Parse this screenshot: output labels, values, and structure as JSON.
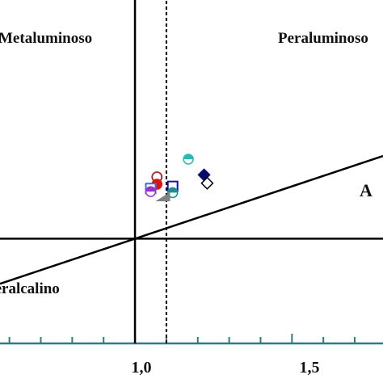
{
  "chart_data": {
    "type": "scatter",
    "xlabel": "A",
    "ylabel": "",
    "xlim": [
      0.57,
      1.79
    ],
    "ylim": [
      0.0,
      3.28
    ],
    "xticks": [
      {
        "value": 1.0,
        "label": "1,0"
      },
      {
        "value": 1.5,
        "label": "1,5"
      }
    ],
    "minor_x_step": 0.1,
    "region_labels": [
      {
        "text": "Metaluminoso"
      },
      {
        "text": "Peraluminoso"
      },
      {
        "text": "Peralcalino"
      }
    ],
    "reference_lines": [
      {
        "kind": "vertical",
        "x": 1.0,
        "style": "solid"
      },
      {
        "kind": "horizontal",
        "y": 1.0,
        "style": "solid"
      },
      {
        "kind": "vertical",
        "x": 1.1,
        "style": "dashed"
      },
      {
        "kind": "diagonal",
        "from": [
          0.57,
          0.57
        ],
        "to": [
          1.79,
          1.79
        ],
        "style": "solid"
      }
    ],
    "points": [
      {
        "x": 1.17,
        "y": 1.76,
        "marker": "circle-half",
        "color": "#2fb7b3"
      },
      {
        "x": 1.07,
        "y": 1.59,
        "marker": "circle-open",
        "color": "#b22222"
      },
      {
        "x": 1.07,
        "y": 1.52,
        "marker": "circle",
        "color": "#e01010"
      },
      {
        "x": 1.05,
        "y": 1.48,
        "marker": "square-open",
        "color": "#4169e1"
      },
      {
        "x": 1.05,
        "y": 1.45,
        "marker": "circle-half",
        "color": "#9932cc"
      },
      {
        "x": 1.12,
        "y": 1.5,
        "marker": "square-open",
        "color": "#1010c0"
      },
      {
        "x": 1.12,
        "y": 1.44,
        "marker": "circle-half",
        "color": "#1e8c8c"
      },
      {
        "x": 1.09,
        "y": 1.4,
        "marker": "triangle",
        "color": "#808080"
      },
      {
        "x": 1.22,
        "y": 1.61,
        "marker": "diamond",
        "color": "#0a0a6e"
      },
      {
        "x": 1.23,
        "y": 1.53,
        "marker": "diamond-open",
        "color": "#000000"
      }
    ],
    "frame_color": "#2e7d80"
  }
}
